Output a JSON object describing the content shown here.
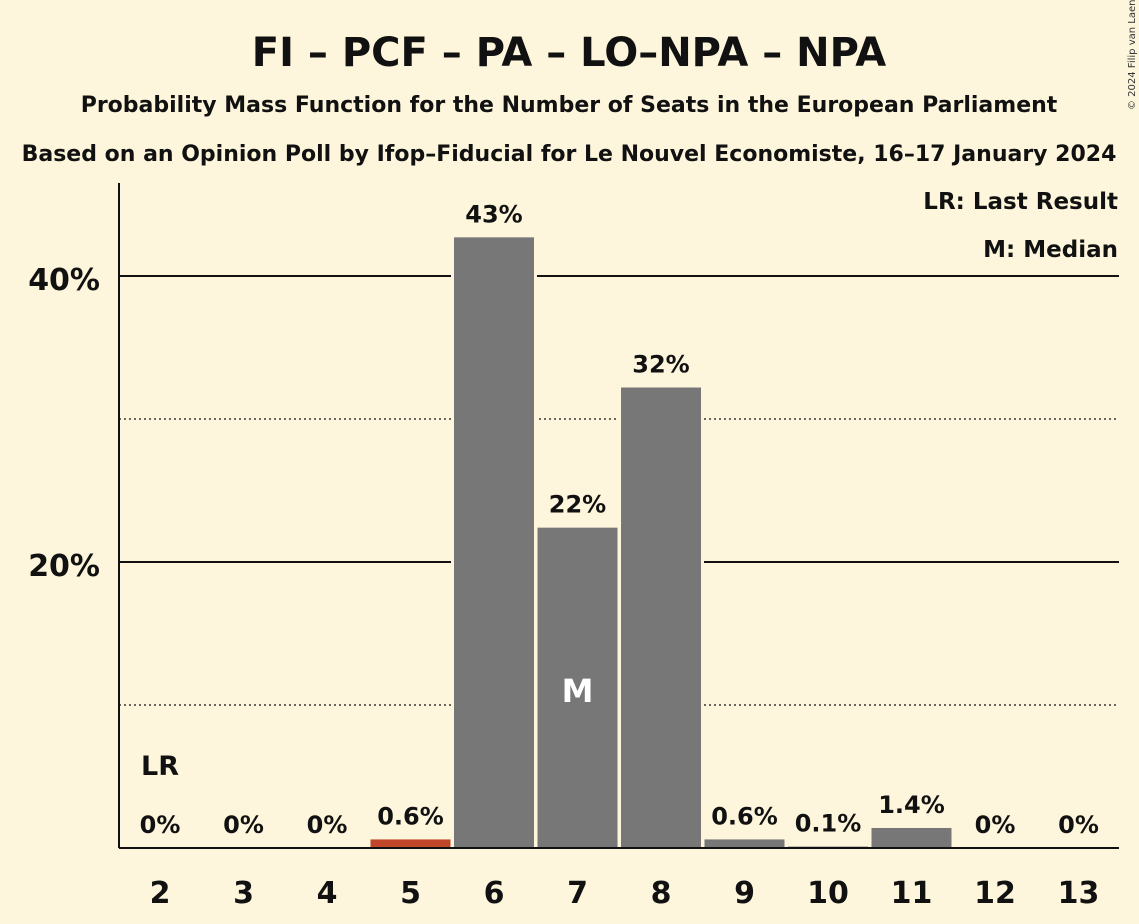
{
  "chart_data": {
    "type": "bar",
    "title": "FI – PCF – PA – LO–NPA – NPA",
    "subtitle": "Probability Mass Function for the Number of Seats in the European Parliament",
    "subtitle2": "Based on an Opinion Poll by Ifop–Fiducial for Le Nouvel Economiste, 16–17 January 2024",
    "copyright": "© 2024 Filip van Laenen",
    "categories": [
      "2",
      "3",
      "4",
      "5",
      "6",
      "7",
      "8",
      "9",
      "10",
      "11",
      "12",
      "13"
    ],
    "values": [
      0,
      0,
      0,
      0.6,
      42.7,
      22.4,
      32.2,
      0.6,
      0.1,
      1.4,
      0,
      0
    ],
    "data_labels": [
      "0%",
      "0%",
      "0%",
      "0.6%",
      "43%",
      "22%",
      "32%",
      "0.6%",
      "0.1%",
      "1.4%",
      "0%",
      "0%"
    ],
    "ylim": [
      0,
      46.5
    ],
    "yticks": [
      {
        "value": 20,
        "label": "20%",
        "style": "solid"
      },
      {
        "value": 40,
        "label": "40%",
        "style": "solid"
      }
    ],
    "minor_gridlines": [
      10,
      30
    ],
    "last_result": {
      "category": "2",
      "label": "LR"
    },
    "median": {
      "category": "7",
      "label": "M"
    },
    "highlight": {
      "category": "5",
      "color": "#c0472a"
    },
    "bar_color": "#777777",
    "legend": [
      "LR: Last Result",
      "M: Median"
    ],
    "legend_position": "top-right"
  }
}
